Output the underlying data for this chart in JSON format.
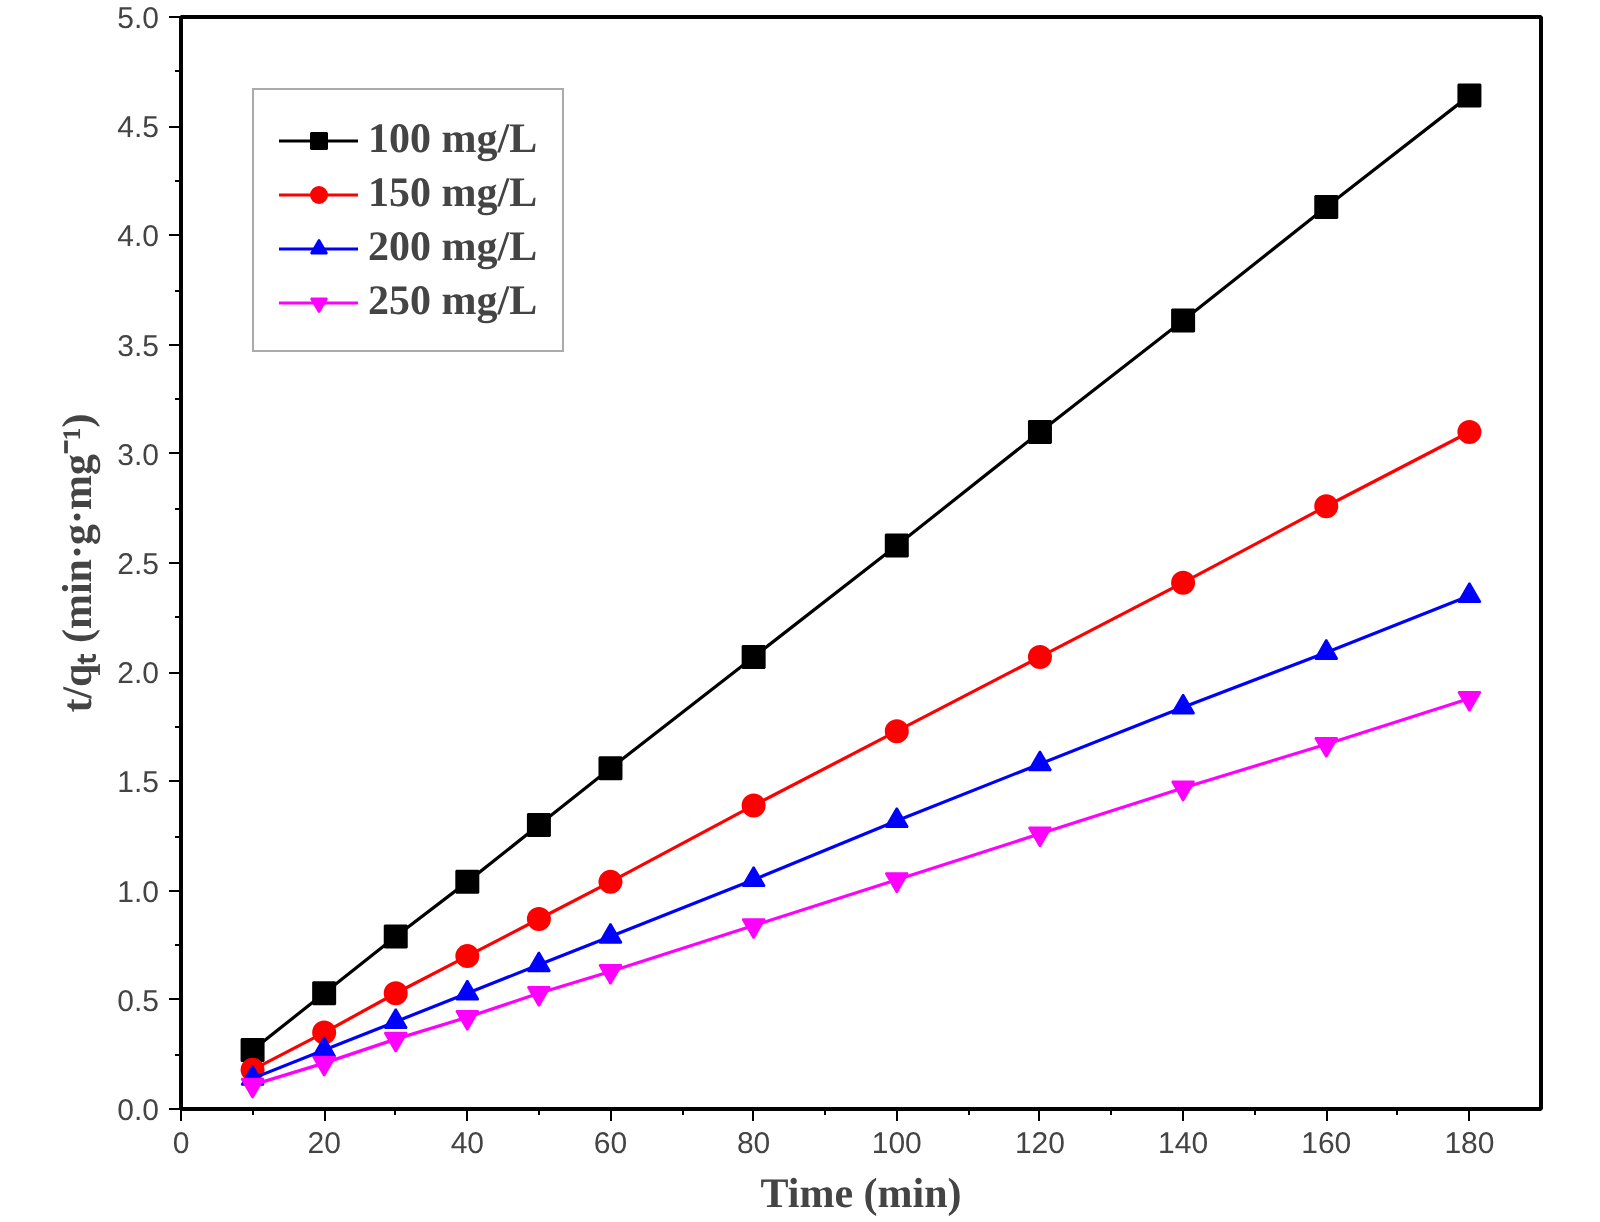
{
  "chart_data": {
    "type": "line",
    "xlabel": "Time (min)",
    "ylabel": "t/qₜ (min·g·mg⁻¹)",
    "x": [
      10,
      20,
      30,
      40,
      50,
      60,
      80,
      100,
      120,
      140,
      160,
      180
    ],
    "series": [
      {
        "name": "100 mg/L",
        "color": "#000000",
        "marker": "square",
        "values": [
          0.27,
          0.53,
          0.79,
          1.04,
          1.3,
          1.56,
          2.07,
          2.58,
          3.1,
          3.61,
          4.13,
          4.64
        ]
      },
      {
        "name": "150 mg/L",
        "color": "#ff0000",
        "marker": "circle",
        "values": [
          0.18,
          0.35,
          0.53,
          0.7,
          0.87,
          1.04,
          1.39,
          1.73,
          2.07,
          2.41,
          2.76,
          3.1
        ]
      },
      {
        "name": "200 mg/L",
        "color": "#0000ff",
        "marker": "triangle",
        "values": [
          0.14,
          0.27,
          0.4,
          0.53,
          0.66,
          0.79,
          1.05,
          1.32,
          1.58,
          1.84,
          2.09,
          2.35
        ]
      },
      {
        "name": "250 mg/L",
        "color": "#ff00ff",
        "marker": "triangle",
        "values": [
          0.11,
          0.21,
          0.32,
          0.42,
          0.53,
          0.63,
          0.84,
          1.05,
          1.26,
          1.47,
          1.67,
          1.88
        ]
      }
    ],
    "xlim": [
      0,
      190
    ],
    "ylim": [
      0,
      5.0
    ],
    "xticks": [
      0,
      20,
      40,
      60,
      80,
      100,
      120,
      140,
      160,
      180
    ],
    "yticks": [
      {
        "value": 0,
        "label": "0.0"
      },
      0.5,
      {
        "value": 1,
        "label": "1.0"
      },
      1.5,
      {
        "value": 2,
        "label": "2.0"
      },
      2.5,
      {
        "value": 3,
        "label": "3.0"
      },
      3.5,
      {
        "value": 4,
        "label": "4.0"
      },
      4.5,
      {
        "value": 5,
        "label": "5.0"
      }
    ],
    "legend": "top left",
    "line_style": "solid",
    "grid": false
  }
}
